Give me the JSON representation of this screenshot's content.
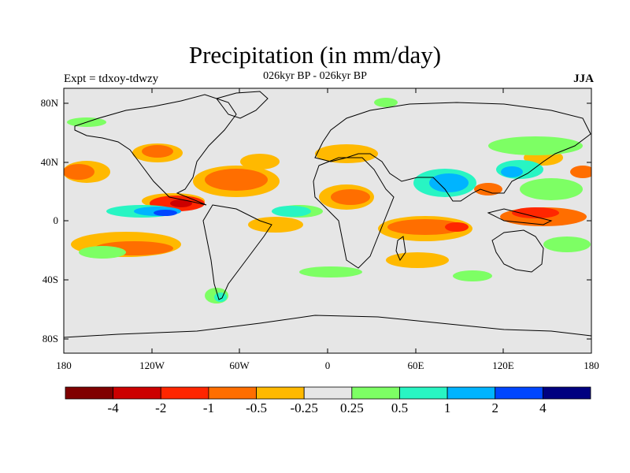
{
  "title": "Precipitation (in mm/day)",
  "subtitle_left": "Expt = tdxoy-tdwzy",
  "subtitle_center": "026kyr BP - 026kyr BP",
  "subtitle_right": "JJA",
  "map": {
    "projection": "cylindrical-equidistant",
    "lon_range": [
      -180,
      180
    ],
    "lat_range": [
      -90,
      90
    ],
    "background_color": "#e6e6e6",
    "y_ticks": [
      "80N",
      "40N",
      "0",
      "40S",
      "80S"
    ],
    "x_ticks": [
      "180",
      "120W",
      "60W",
      "0",
      "60E",
      "120E",
      "180"
    ]
  },
  "colorbar": {
    "colors": [
      "#800000",
      "#cc0000",
      "#ff2600",
      "#ff6e00",
      "#ffb900",
      "#e6e6e6",
      "#7dff64",
      "#28f5c3",
      "#00b4ff",
      "#0046ff",
      "#000080"
    ],
    "labels": [
      "-4",
      "-2",
      "-1",
      "-0.5",
      "-0.25",
      "0.25",
      "0.5",
      "1",
      "2",
      "4"
    ]
  }
}
